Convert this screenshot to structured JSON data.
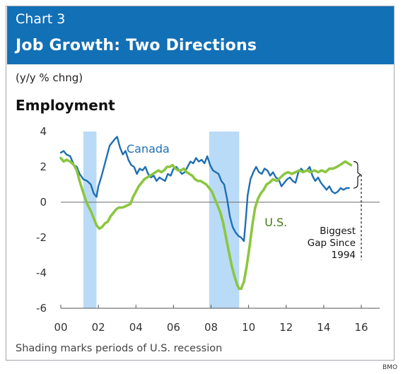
{
  "header": {
    "kicker": "Chart 3",
    "title": "Job Growth: Two Directions"
  },
  "unit_label": "(y/y % chng)",
  "footnote": "Shading marks periods of U.S. recession",
  "source": "BMO",
  "chart_data": {
    "type": "line",
    "title": "Employment",
    "xlabel": "",
    "ylabel": "",
    "xlim": [
      2000,
      2016.5
    ],
    "ylim": [
      -6,
      4
    ],
    "x_ticks": [
      2000,
      2002,
      2004,
      2006,
      2008,
      2010,
      2012,
      2014,
      2016
    ],
    "x_tick_labels": [
      "00",
      "02",
      "04",
      "06",
      "08",
      "10",
      "12",
      "14",
      "16"
    ],
    "y_ticks": [
      4,
      2,
      0,
      -2,
      -4,
      -6
    ],
    "y_tick_labels": [
      "4",
      "2",
      "0",
      "-2",
      "-4",
      "-6"
    ],
    "grid": false,
    "zero_line": true,
    "recession_shading": [
      [
        2001.2,
        2001.9
      ],
      [
        2007.9,
        2009.5
      ]
    ],
    "shade_color": "#b9dbf7",
    "series": [
      {
        "name": "Canada",
        "color": "#1f6fb2",
        "points": [
          [
            2000.0,
            2.8
          ],
          [
            2000.15,
            2.9
          ],
          [
            2000.3,
            2.7
          ],
          [
            2000.5,
            2.6
          ],
          [
            2000.7,
            2.1
          ],
          [
            2000.85,
            2.0
          ],
          [
            2001.0,
            1.6
          ],
          [
            2001.2,
            1.3
          ],
          [
            2001.4,
            1.2
          ],
          [
            2001.6,
            1.0
          ],
          [
            2001.75,
            0.5
          ],
          [
            2001.9,
            0.3
          ],
          [
            2002.0,
            0.9
          ],
          [
            2002.15,
            1.4
          ],
          [
            2002.3,
            2.0
          ],
          [
            2002.45,
            2.6
          ],
          [
            2002.6,
            3.2
          ],
          [
            2002.75,
            3.4
          ],
          [
            2002.9,
            3.6
          ],
          [
            2003.0,
            3.7
          ],
          [
            2003.15,
            3.1
          ],
          [
            2003.3,
            2.7
          ],
          [
            2003.45,
            2.9
          ],
          [
            2003.6,
            2.4
          ],
          [
            2003.75,
            2.1
          ],
          [
            2003.9,
            2.0
          ],
          [
            2004.05,
            1.6
          ],
          [
            2004.2,
            1.9
          ],
          [
            2004.35,
            1.8
          ],
          [
            2004.5,
            2.0
          ],
          [
            2004.65,
            1.6
          ],
          [
            2004.8,
            1.4
          ],
          [
            2004.95,
            1.5
          ],
          [
            2005.1,
            1.2
          ],
          [
            2005.25,
            1.4
          ],
          [
            2005.4,
            1.3
          ],
          [
            2005.55,
            1.2
          ],
          [
            2005.7,
            1.6
          ],
          [
            2005.85,
            1.5
          ],
          [
            2006.0,
            1.9
          ],
          [
            2006.15,
            2.0
          ],
          [
            2006.3,
            1.8
          ],
          [
            2006.45,
            1.6
          ],
          [
            2006.6,
            1.7
          ],
          [
            2006.75,
            2.0
          ],
          [
            2006.9,
            2.3
          ],
          [
            2007.05,
            2.2
          ],
          [
            2007.2,
            2.5
          ],
          [
            2007.35,
            2.3
          ],
          [
            2007.5,
            2.4
          ],
          [
            2007.65,
            2.2
          ],
          [
            2007.8,
            2.6
          ],
          [
            2007.95,
            2.1
          ],
          [
            2008.1,
            1.8
          ],
          [
            2008.25,
            1.7
          ],
          [
            2008.4,
            1.6
          ],
          [
            2008.55,
            1.2
          ],
          [
            2008.7,
            1.0
          ],
          [
            2008.85,
            0.2
          ],
          [
            2009.0,
            -0.8
          ],
          [
            2009.15,
            -1.4
          ],
          [
            2009.3,
            -1.7
          ],
          [
            2009.45,
            -1.9
          ],
          [
            2009.6,
            -2.0
          ],
          [
            2009.75,
            -2.2
          ],
          [
            2009.85,
            -1.0
          ],
          [
            2009.95,
            0.4
          ],
          [
            2010.1,
            1.3
          ],
          [
            2010.25,
            1.7
          ],
          [
            2010.4,
            2.0
          ],
          [
            2010.55,
            1.7
          ],
          [
            2010.7,
            1.6
          ],
          [
            2010.85,
            1.9
          ],
          [
            2011.0,
            1.8
          ],
          [
            2011.15,
            1.5
          ],
          [
            2011.3,
            1.7
          ],
          [
            2011.45,
            1.4
          ],
          [
            2011.6,
            1.3
          ],
          [
            2011.75,
            0.9
          ],
          [
            2011.9,
            1.1
          ],
          [
            2012.05,
            1.3
          ],
          [
            2012.2,
            1.4
          ],
          [
            2012.35,
            1.2
          ],
          [
            2012.5,
            1.1
          ],
          [
            2012.65,
            1.7
          ],
          [
            2012.8,
            1.9
          ],
          [
            2012.95,
            1.7
          ],
          [
            2013.1,
            1.8
          ],
          [
            2013.25,
            2.0
          ],
          [
            2013.4,
            1.5
          ],
          [
            2013.55,
            1.2
          ],
          [
            2013.7,
            1.4
          ],
          [
            2013.85,
            1.1
          ],
          [
            2014.0,
            0.9
          ],
          [
            2014.15,
            0.7
          ],
          [
            2014.3,
            0.9
          ],
          [
            2014.45,
            0.6
          ],
          [
            2014.6,
            0.5
          ],
          [
            2014.75,
            0.6
          ],
          [
            2014.9,
            0.8
          ],
          [
            2015.05,
            0.7
          ],
          [
            2015.2,
            0.8
          ],
          [
            2015.35,
            0.8
          ]
        ]
      },
      {
        "name": "U.S.",
        "color": "#8cc63f",
        "points": [
          [
            2000.0,
            2.5
          ],
          [
            2000.15,
            2.3
          ],
          [
            2000.3,
            2.4
          ],
          [
            2000.5,
            2.3
          ],
          [
            2000.7,
            2.1
          ],
          [
            2000.85,
            1.8
          ],
          [
            2001.0,
            1.2
          ],
          [
            2001.15,
            0.7
          ],
          [
            2001.3,
            0.2
          ],
          [
            2001.45,
            -0.2
          ],
          [
            2001.6,
            -0.5
          ],
          [
            2001.75,
            -0.9
          ],
          [
            2001.9,
            -1.3
          ],
          [
            2002.05,
            -1.5
          ],
          [
            2002.2,
            -1.4
          ],
          [
            2002.35,
            -1.2
          ],
          [
            2002.5,
            -1.1
          ],
          [
            2002.65,
            -0.8
          ],
          [
            2002.8,
            -0.6
          ],
          [
            2002.95,
            -0.4
          ],
          [
            2003.1,
            -0.3
          ],
          [
            2003.3,
            -0.3
          ],
          [
            2003.5,
            -0.2
          ],
          [
            2003.7,
            -0.1
          ],
          [
            2003.85,
            0.3
          ],
          [
            2004.0,
            0.6
          ],
          [
            2004.15,
            0.9
          ],
          [
            2004.3,
            1.1
          ],
          [
            2004.45,
            1.3
          ],
          [
            2004.6,
            1.4
          ],
          [
            2004.75,
            1.5
          ],
          [
            2004.9,
            1.6
          ],
          [
            2005.05,
            1.7
          ],
          [
            2005.2,
            1.8
          ],
          [
            2005.35,
            1.7
          ],
          [
            2005.5,
            1.8
          ],
          [
            2005.65,
            2.0
          ],
          [
            2005.8,
            2.0
          ],
          [
            2005.95,
            2.1
          ],
          [
            2006.1,
            1.9
          ],
          [
            2006.25,
            1.8
          ],
          [
            2006.4,
            1.8
          ],
          [
            2006.55,
            1.9
          ],
          [
            2006.7,
            1.7
          ],
          [
            2006.85,
            1.6
          ],
          [
            2007.0,
            1.5
          ],
          [
            2007.15,
            1.3
          ],
          [
            2007.3,
            1.2
          ],
          [
            2007.45,
            1.2
          ],
          [
            2007.6,
            1.1
          ],
          [
            2007.75,
            1.0
          ],
          [
            2007.9,
            0.8
          ],
          [
            2008.05,
            0.6
          ],
          [
            2008.2,
            0.2
          ],
          [
            2008.35,
            -0.2
          ],
          [
            2008.5,
            -0.6
          ],
          [
            2008.65,
            -1.2
          ],
          [
            2008.8,
            -2.0
          ],
          [
            2008.95,
            -2.8
          ],
          [
            2009.1,
            -3.6
          ],
          [
            2009.25,
            -4.2
          ],
          [
            2009.4,
            -4.7
          ],
          [
            2009.5,
            -4.9
          ],
          [
            2009.6,
            -4.9
          ],
          [
            2009.75,
            -4.5
          ],
          [
            2009.9,
            -3.6
          ],
          [
            2010.05,
            -2.5
          ],
          [
            2010.2,
            -1.3
          ],
          [
            2010.35,
            -0.3
          ],
          [
            2010.5,
            0.2
          ],
          [
            2010.65,
            0.5
          ],
          [
            2010.8,
            0.7
          ],
          [
            2010.95,
            1.0
          ],
          [
            2011.1,
            1.1
          ],
          [
            2011.3,
            1.3
          ],
          [
            2011.5,
            1.2
          ],
          [
            2011.7,
            1.4
          ],
          [
            2011.9,
            1.6
          ],
          [
            2012.1,
            1.7
          ],
          [
            2012.3,
            1.6
          ],
          [
            2012.5,
            1.7
          ],
          [
            2012.7,
            1.8
          ],
          [
            2012.9,
            1.7
          ],
          [
            2013.1,
            1.8
          ],
          [
            2013.3,
            1.7
          ],
          [
            2013.5,
            1.8
          ],
          [
            2013.7,
            1.7
          ],
          [
            2013.9,
            1.8
          ],
          [
            2014.1,
            1.7
          ],
          [
            2014.3,
            1.9
          ],
          [
            2014.5,
            1.9
          ],
          [
            2014.7,
            2.0
          ],
          [
            2014.85,
            2.1
          ],
          [
            2015.0,
            2.2
          ],
          [
            2015.15,
            2.3
          ],
          [
            2015.3,
            2.2
          ],
          [
            2015.45,
            2.1
          ]
        ]
      }
    ],
    "series_labels": [
      {
        "series": "Canada",
        "text": "Canada",
        "x": 2003.5,
        "y": 2.8
      },
      {
        "series": "U.S.",
        "text": "U.S.",
        "x": 2010.85,
        "y": -1.35
      }
    ],
    "annotation": {
      "lines": [
        "Biggest",
        "Gap Since",
        "1994"
      ],
      "bracket_y": [
        2.3,
        0.8
      ]
    }
  }
}
